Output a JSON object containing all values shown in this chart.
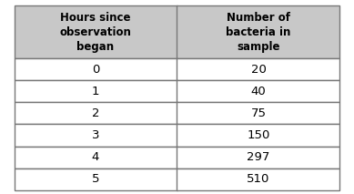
{
  "col1_header": "Hours since\nobservation\nbegan",
  "col2_header": "Number of\nbacteria in\nsample",
  "rows": [
    [
      "0",
      "20"
    ],
    [
      "1",
      "40"
    ],
    [
      "2",
      "75"
    ],
    [
      "3",
      "150"
    ],
    [
      "4",
      "297"
    ],
    [
      "5",
      "510"
    ]
  ],
  "header_bg": "#c8c8c8",
  "row_bg": "#ffffff",
  "border_color": "#777777",
  "text_color": "#000000",
  "header_fontsize": 8.5,
  "cell_fontsize": 9.5,
  "fig_bg": "#ffffff",
  "fig_width": 3.89,
  "fig_height": 2.13,
  "dpi": 100
}
